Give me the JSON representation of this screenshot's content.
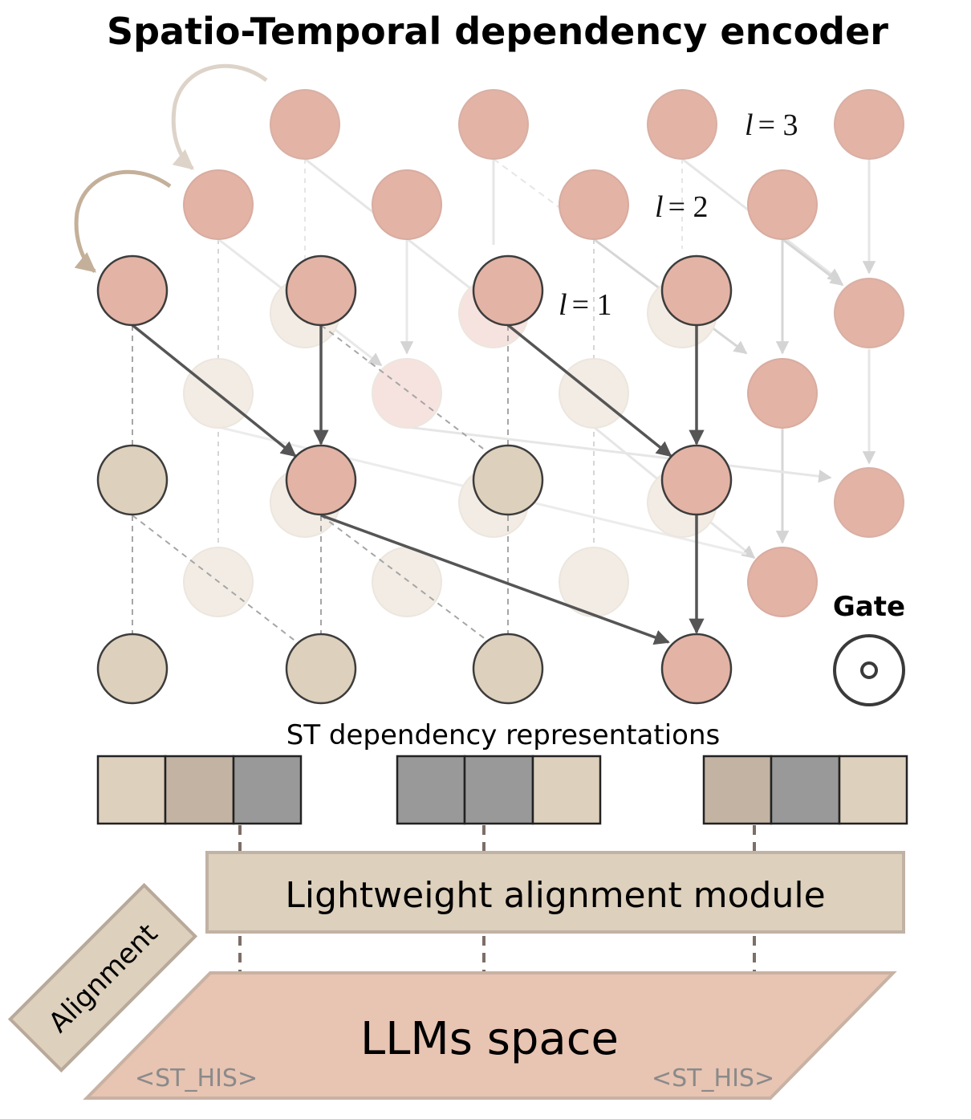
{
  "title": "Spatio-Temporal dependency encoder",
  "layers": {
    "l3": {
      "var": "l",
      "eq": "= 3"
    },
    "l2": {
      "var": "l",
      "eq": "= 2"
    },
    "l1": {
      "var": "l",
      "eq": "= 1"
    }
  },
  "gate": {
    "label": "Gate"
  },
  "representations": {
    "label": "ST dependency representations"
  },
  "alignment_module": {
    "label": "Lightweight alignment module"
  },
  "alignment_tag": {
    "label": "Alignment"
  },
  "llm_space": {
    "label": "LLMs space",
    "token_left": "<ST_HIS>",
    "token_right": "<ST_HIS>"
  },
  "colors": {
    "active_node": "#e3b3a5",
    "history_node": "#ddd0bc",
    "faded_node": "#f2ece4",
    "dark_block": "#999999",
    "mid_block": "#c2b3a3",
    "light_block": "#ddd0bc",
    "llm_fill": "#e8c4b2",
    "module_fill": "#ddd0bc"
  }
}
